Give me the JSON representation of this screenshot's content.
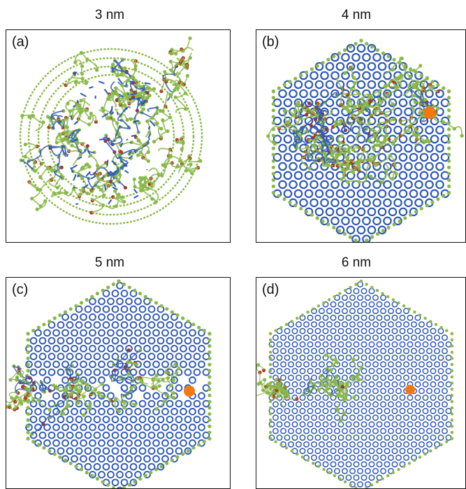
{
  "colors": {
    "lattice": "#2d57b6",
    "edge": "#8ab84a",
    "oxygen": "#b0321c",
    "atom": "#f07a10"
  },
  "panels": [
    {
      "id": "a",
      "label": "(a)",
      "title": "3 nm",
      "structure": "amorphous-cluster"
    },
    {
      "id": "b",
      "label": "(b)",
      "title": "4 nm",
      "structure": "partial-hexagonal",
      "has_atom": true
    },
    {
      "id": "c",
      "label": "(c)",
      "title": "5 nm",
      "structure": "hexagonal-with-seam",
      "has_atom": true
    },
    {
      "id": "d",
      "label": "(d)",
      "title": "6 nm",
      "structure": "hexagonal-with-faint-seam",
      "has_atom": true
    }
  ]
}
